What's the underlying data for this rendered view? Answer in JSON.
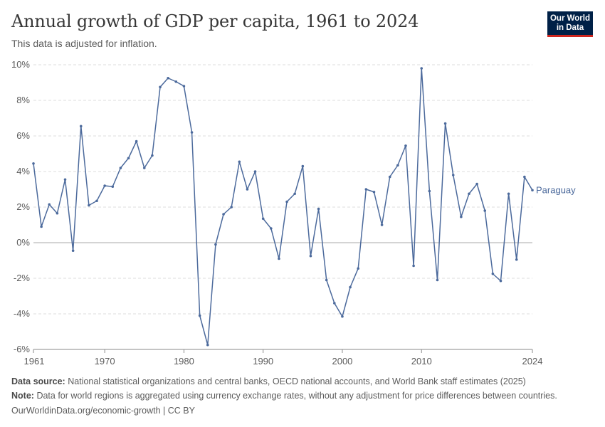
{
  "header": {
    "title": "Annual growth of GDP per capita, 1961 to 2024",
    "subtitle": "This data is adjusted for inflation.",
    "logo_line1": "Our World",
    "logo_line2": "in Data"
  },
  "footer": {
    "source_label": "Data source:",
    "source_text": "National statistical organizations and central banks, OECD national accounts, and World Bank staff estimates (2025)",
    "note_label": "Note:",
    "note_text": "Data for world regions is aggregated using currency exchange rates, without any adjustment for price differences between countries.",
    "url_text": "OurWorldinData.org/economic-growth | CC BY"
  },
  "colors": {
    "line": "#4c6a9c",
    "grid": "#dddddd",
    "zero": "#a8a8a8",
    "text": "#5b5b5b"
  },
  "chart_data": {
    "type": "line",
    "title": "Annual growth of GDP per capita, 1961 to 2024",
    "subtitle": "This data is adjusted for inflation.",
    "xlim": [
      1961,
      2024
    ],
    "ylim": [
      -6,
      10
    ],
    "x_ticks": [
      1961,
      1970,
      1980,
      1990,
      2000,
      2010,
      2024
    ],
    "y_ticks": [
      -6,
      -4,
      -2,
      0,
      2,
      4,
      6,
      8,
      10
    ],
    "y_tick_labels": [
      "-6%",
      "-4%",
      "-2%",
      "0%",
      "2%",
      "4%",
      "6%",
      "8%",
      "10%"
    ],
    "grid": "horizontal dashed",
    "series": [
      {
        "name": "Paraguay",
        "x": [
          1961,
          1962,
          1963,
          1964,
          1965,
          1966,
          1967,
          1968,
          1969,
          1970,
          1971,
          1972,
          1973,
          1974,
          1975,
          1976,
          1977,
          1978,
          1979,
          1980,
          1981,
          1982,
          1983,
          1984,
          1985,
          1986,
          1987,
          1988,
          1989,
          1990,
          1991,
          1992,
          1993,
          1994,
          1995,
          1996,
          1997,
          1998,
          1999,
          2000,
          2001,
          2002,
          2003,
          2004,
          2005,
          2006,
          2007,
          2008,
          2009,
          2010,
          2011,
          2012,
          2013,
          2014,
          2015,
          2016,
          2017,
          2018,
          2019,
          2020,
          2021,
          2022,
          2023,
          2024
        ],
        "y": [
          4.45,
          0.9,
          2.15,
          1.65,
          3.55,
          -0.45,
          6.55,
          2.1,
          2.35,
          3.2,
          3.15,
          4.2,
          4.75,
          5.7,
          4.2,
          4.9,
          8.75,
          9.25,
          9.05,
          8.8,
          6.2,
          -4.1,
          -5.75,
          -0.1,
          1.6,
          2.0,
          4.55,
          3.0,
          4.0,
          1.35,
          0.8,
          -0.9,
          2.3,
          2.75,
          4.3,
          -0.75,
          1.9,
          -2.1,
          -3.4,
          -4.15,
          -2.5,
          -1.45,
          3.0,
          2.85,
          1.0,
          3.7,
          4.35,
          5.45,
          -1.3,
          9.8,
          2.9,
          -2.1,
          6.7,
          3.8,
          1.45,
          2.75,
          3.3,
          1.8,
          -1.75,
          -2.15,
          2.75,
          -0.95,
          3.7,
          2.95
        ]
      }
    ]
  }
}
